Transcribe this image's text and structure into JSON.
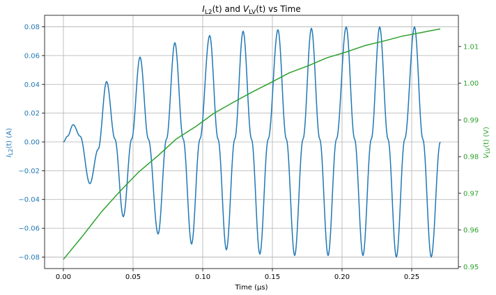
{
  "chart_data": {
    "type": "line",
    "title_parts": {
      "i_letter": "I",
      "i_sub": "L2",
      "t1": "(t)",
      "and": " and ",
      "v_letter": "V",
      "v_sub": "LV",
      "t2": "(t)",
      "vs": " vs Time"
    },
    "xlabel": "Time (µs)",
    "ylabel_left_parts": {
      "letter": "I",
      "sub": "L2",
      "rest": "(t) (A)"
    },
    "ylabel_right_parts": {
      "letter": "V",
      "sub": "LV",
      "rest": "(t) (V)"
    },
    "xlim": [
      -0.0135,
      0.2835
    ],
    "ylim_left": [
      -0.088,
      0.088
    ],
    "ylim_right": [
      0.9495,
      1.0185
    ],
    "x_ticks": [
      0.0,
      0.05,
      0.1,
      0.15,
      0.2,
      0.25
    ],
    "x_tick_labels": [
      "0.00",
      "0.05",
      "0.10",
      "0.15",
      "0.20",
      "0.25"
    ],
    "y_left_ticks": [
      -0.08,
      -0.06,
      -0.04,
      -0.02,
      0.0,
      0.02,
      0.04,
      0.06,
      0.08
    ],
    "y_left_tick_labels": [
      "−0.08",
      "−0.06",
      "−0.04",
      "−0.02",
      "0.00",
      "0.02",
      "0.04",
      "0.06",
      "0.08"
    ],
    "y_right_ticks": [
      0.95,
      0.96,
      0.97,
      0.98,
      0.99,
      1.0,
      1.01
    ],
    "y_right_tick_labels": [
      "0.95",
      "0.96",
      "0.97",
      "0.98",
      "0.99",
      "1.00",
      "1.01"
    ],
    "grid": true,
    "colors": {
      "current": "#1f77b4",
      "voltage": "#2ca02c",
      "axis": "#000000",
      "grid": "#b0b0b0"
    },
    "series": [
      {
        "axis": "left",
        "color": "#1f77b4",
        "x": [
          0.0,
          0.003,
          0.007,
          0.012,
          0.019,
          0.025,
          0.031,
          0.037,
          0.043,
          0.049,
          0.055,
          0.061,
          0.068,
          0.074,
          0.08,
          0.086,
          0.092,
          0.098,
          0.105,
          0.111,
          0.117,
          0.123,
          0.129,
          0.135,
          0.141,
          0.147,
          0.154,
          0.16,
          0.166,
          0.172,
          0.178,
          0.184,
          0.19,
          0.196,
          0.203,
          0.209,
          0.215,
          0.221,
          0.227,
          0.233,
          0.239,
          0.245,
          0.252,
          0.258,
          0.264,
          0.2705
        ],
        "values": [
          0.0,
          0.004,
          0.012,
          0.004,
          -0.029,
          -0.005,
          0.042,
          0.002,
          -0.052,
          0.002,
          0.059,
          0.002,
          -0.064,
          0.002,
          0.069,
          0.002,
          -0.071,
          0.002,
          0.074,
          0.002,
          -0.075,
          0.002,
          0.077,
          0.002,
          -0.078,
          0.002,
          0.078,
          0.002,
          -0.079,
          0.002,
          0.079,
          0.002,
          -0.079,
          0.002,
          0.08,
          0.002,
          -0.079,
          0.002,
          0.08,
          0.002,
          -0.08,
          0.002,
          0.08,
          0.002,
          -0.08,
          0.0
        ]
      },
      {
        "axis": "right",
        "color": "#2ca02c",
        "x": [
          0.0,
          0.013,
          0.027,
          0.04,
          0.054,
          0.068,
          0.081,
          0.095,
          0.108,
          0.122,
          0.135,
          0.149,
          0.162,
          0.176,
          0.189,
          0.203,
          0.216,
          0.23,
          0.243,
          0.257,
          0.2705
        ],
        "values": [
          0.952,
          0.958,
          0.9648,
          0.9703,
          0.9758,
          0.9803,
          0.9848,
          0.9882,
          0.9918,
          0.9948,
          0.9975,
          1.0002,
          1.0028,
          1.0048,
          1.0069,
          1.0085,
          1.0102,
          1.0115,
          1.0128,
          1.0138,
          1.0148
        ]
      }
    ]
  }
}
